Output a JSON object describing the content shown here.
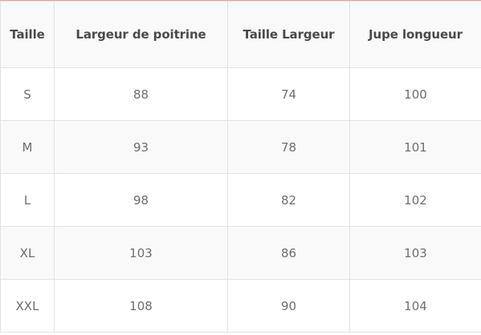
{
  "table": {
    "headers": [
      "Taille",
      "Largeur de poitrine",
      "Taille Largeur",
      "Jupe longueur"
    ],
    "rows": [
      [
        "S",
        "88",
        "74",
        "100"
      ],
      [
        "M",
        "93",
        "78",
        "101"
      ],
      [
        "L",
        "98",
        "82",
        "102"
      ],
      [
        "XL",
        "103",
        "86",
        "103"
      ],
      [
        "XXL",
        "108",
        "90",
        "104"
      ]
    ]
  },
  "colors": {
    "top_accent": "#e8a09a",
    "header_background": "#f9f9f9",
    "alternate_row_background": "#f9f9f9",
    "border": "#e3e3e3",
    "header_text": "#4a4a4a",
    "cell_text": "#6e6e6e"
  }
}
